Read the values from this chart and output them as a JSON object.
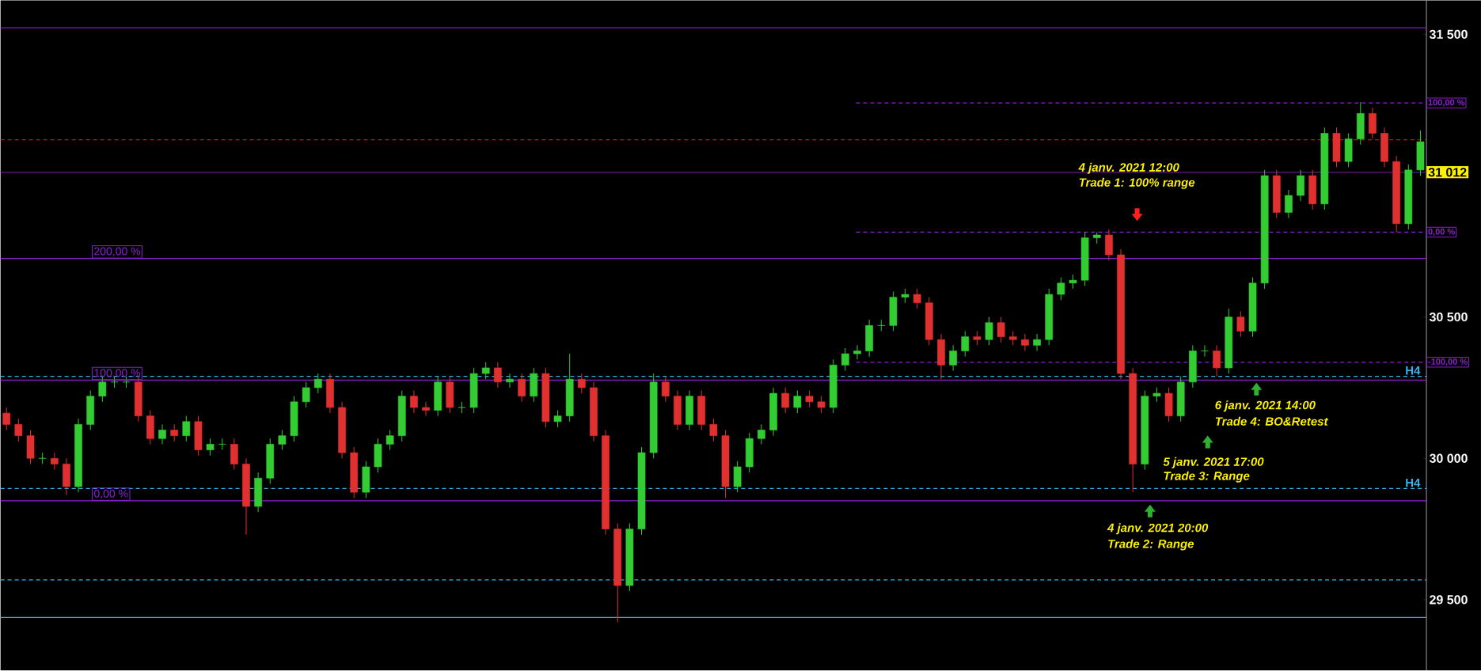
{
  "chart_data": {
    "type": "candlestick",
    "categories": [
      null,
      null,
      null,
      null,
      null,
      null,
      null,
      null,
      null,
      null,
      null,
      null,
      null,
      null,
      null,
      null,
      null,
      null,
      null,
      null,
      null,
      null,
      null,
      null,
      null,
      null,
      null,
      null,
      null,
      null,
      null,
      null,
      null,
      null,
      null,
      null,
      null,
      null,
      null,
      null,
      null,
      null,
      null,
      null,
      null,
      null,
      null,
      null,
      null,
      null,
      null,
      null,
      null,
      null,
      null,
      null,
      null,
      null,
      null,
      null,
      null,
      null,
      null,
      null,
      null,
      null,
      null,
      null,
      null,
      null,
      null,
      null,
      null,
      null,
      null,
      null,
      null,
      null,
      null,
      null,
      null,
      null,
      null,
      null,
      null,
      null,
      null,
      null,
      null,
      null,
      null,
      null,
      null,
      null,
      null,
      null,
      null,
      null,
      null,
      null,
      null,
      null,
      null,
      null,
      null,
      null,
      null,
      null,
      null,
      null,
      null,
      null,
      null,
      null,
      null,
      null,
      null,
      null,
      null
    ],
    "ohlc": [
      [
        30160,
        30180,
        30100,
        30120
      ],
      [
        30120,
        30140,
        30060,
        30080
      ],
      [
        30080,
        30100,
        29980,
        30000
      ],
      [
        30000,
        30020,
        29980,
        30000
      ],
      [
        30000,
        30020,
        29960,
        29980
      ],
      [
        29980,
        30000,
        29870,
        29900
      ],
      [
        29900,
        30140,
        29880,
        30120
      ],
      [
        30120,
        30240,
        30100,
        30220
      ],
      [
        30220,
        30290,
        30200,
        30270
      ],
      [
        30270,
        30290,
        30250,
        30270
      ],
      [
        30270,
        30290,
        30250,
        30270
      ],
      [
        30270,
        30290,
        30130,
        30150
      ],
      [
        30150,
        30170,
        30050,
        30070
      ],
      [
        30070,
        30120,
        30050,
        30100
      ],
      [
        30100,
        30120,
        30060,
        30080
      ],
      [
        30080,
        30150,
        30060,
        30130
      ],
      [
        30130,
        30150,
        30010,
        30030
      ],
      [
        30030,
        30070,
        30010,
        30050
      ],
      [
        30050,
        30070,
        30030,
        30050
      ],
      [
        30050,
        30070,
        29960,
        29980
      ],
      [
        29980,
        30000,
        29730,
        29830
      ],
      [
        29830,
        29950,
        29810,
        29930
      ],
      [
        29930,
        30070,
        29910,
        30050
      ],
      [
        30050,
        30100,
        30030,
        30080
      ],
      [
        30080,
        30220,
        30060,
        30200
      ],
      [
        30200,
        30270,
        30180,
        30250
      ],
      [
        30250,
        30300,
        30230,
        30280
      ],
      [
        30280,
        30300,
        30160,
        30180
      ],
      [
        30180,
        30200,
        30000,
        30020
      ],
      [
        30020,
        30040,
        29860,
        29880
      ],
      [
        29880,
        29990,
        29860,
        29970
      ],
      [
        29970,
        30070,
        29950,
        30050
      ],
      [
        30050,
        30100,
        30030,
        30080
      ],
      [
        30080,
        30240,
        30060,
        30220
      ],
      [
        30220,
        30240,
        30160,
        30180
      ],
      [
        30180,
        30200,
        30150,
        30170
      ],
      [
        30170,
        30290,
        30150,
        30270
      ],
      [
        30270,
        30290,
        30160,
        30180
      ],
      [
        30180,
        30200,
        30160,
        30180
      ],
      [
        30180,
        30320,
        30160,
        30300
      ],
      [
        30300,
        30340,
        30280,
        30320
      ],
      [
        30320,
        30340,
        30250,
        30270
      ],
      [
        30270,
        30300,
        30250,
        30280
      ],
      [
        30280,
        30300,
        30200,
        30220
      ],
      [
        30220,
        30320,
        30200,
        30300
      ],
      [
        30300,
        30320,
        30110,
        30130
      ],
      [
        30130,
        30170,
        30110,
        30150
      ],
      [
        30150,
        30370,
        30130,
        30280
      ],
      [
        30280,
        30300,
        30230,
        30250
      ],
      [
        30250,
        30270,
        30060,
        30080
      ],
      [
        30080,
        30100,
        29730,
        29750
      ],
      [
        29750,
        29770,
        29420,
        29550
      ],
      [
        29550,
        29770,
        29530,
        29750
      ],
      [
        29750,
        30040,
        29730,
        30020
      ],
      [
        30020,
        30300,
        30000,
        30270
      ],
      [
        30270,
        30290,
        30200,
        30220
      ],
      [
        30220,
        30240,
        30100,
        30120
      ],
      [
        30120,
        30240,
        30100,
        30220
      ],
      [
        30220,
        30240,
        30100,
        30120
      ],
      [
        30120,
        30140,
        30060,
        30080
      ],
      [
        30080,
        30100,
        29860,
        29900
      ],
      [
        29900,
        29990,
        29880,
        29970
      ],
      [
        29970,
        30090,
        29950,
        30070
      ],
      [
        30070,
        30120,
        30050,
        30100
      ],
      [
        30100,
        30250,
        30080,
        30230
      ],
      [
        30230,
        30250,
        30160,
        30180
      ],
      [
        30180,
        30240,
        30160,
        30220
      ],
      [
        30220,
        30240,
        30180,
        30200
      ],
      [
        30200,
        30220,
        30160,
        30180
      ],
      [
        30180,
        30350,
        30160,
        30330
      ],
      [
        30330,
        30390,
        30310,
        30370
      ],
      [
        30370,
        30400,
        30350,
        30380
      ],
      [
        30380,
        30490,
        30360,
        30470
      ],
      [
        30470,
        30490,
        30450,
        30470
      ],
      [
        30470,
        30590,
        30450,
        30570
      ],
      [
        30570,
        30600,
        30550,
        30580
      ],
      [
        30580,
        30600,
        30530,
        30550
      ],
      [
        30550,
        30570,
        30400,
        30420
      ],
      [
        30420,
        30440,
        30280,
        30330
      ],
      [
        30330,
        30400,
        30310,
        30380
      ],
      [
        30380,
        30450,
        30360,
        30430
      ],
      [
        30430,
        30450,
        30400,
        30420
      ],
      [
        30420,
        30500,
        30400,
        30480
      ],
      [
        30480,
        30500,
        30410,
        30430
      ],
      [
        30430,
        30450,
        30400,
        30420
      ],
      [
        30420,
        30440,
        30380,
        30400
      ],
      [
        30400,
        30440,
        30380,
        30420
      ],
      [
        30420,
        30600,
        30400,
        30580
      ],
      [
        30580,
        30640,
        30560,
        30620
      ],
      [
        30620,
        30650,
        30600,
        30630
      ],
      [
        30630,
        30800,
        30610,
        30780
      ],
      [
        30780,
        30800,
        30760,
        30790
      ],
      [
        30790,
        30810,
        30700,
        30720
      ],
      [
        30720,
        30740,
        30280,
        30300
      ],
      [
        30300,
        30320,
        29880,
        29980
      ],
      [
        29980,
        30240,
        29960,
        30220
      ],
      [
        30220,
        30250,
        30200,
        30230
      ],
      [
        30230,
        30250,
        30130,
        30150
      ],
      [
        30150,
        30290,
        30130,
        30270
      ],
      [
        30270,
        30400,
        30250,
        30380
      ],
      [
        30380,
        30400,
        30360,
        30380
      ],
      [
        30380,
        30400,
        30290,
        30320
      ],
      [
        30320,
        30530,
        30300,
        30500
      ],
      [
        30500,
        30520,
        30430,
        30450
      ],
      [
        30450,
        30640,
        30430,
        30620
      ],
      [
        30620,
        31020,
        30600,
        31000
      ],
      [
        31000,
        31020,
        30850,
        30870
      ],
      [
        30870,
        30950,
        30850,
        30930
      ],
      [
        30930,
        31020,
        30910,
        31000
      ],
      [
        31000,
        31020,
        30880,
        30900
      ],
      [
        30900,
        31170,
        30880,
        31150
      ],
      [
        31150,
        31170,
        31030,
        31050
      ],
      [
        31050,
        31150,
        31030,
        31130
      ],
      [
        31130,
        31260,
        31110,
        31220
      ],
      [
        31220,
        31240,
        31130,
        31150
      ],
      [
        31150,
        31170,
        31030,
        31050
      ],
      [
        31050,
        31070,
        30800,
        30830
      ],
      [
        30830,
        31040,
        30810,
        31020
      ],
      [
        31020,
        31160,
        31000,
        31120
      ]
    ],
    "ylim": [
      29250,
      31620
    ],
    "yticks": [
      {
        "value": 29500,
        "label": "29 500"
      },
      {
        "value": 30000,
        "label": "30 000"
      },
      {
        "value": 30500,
        "label": "30 500"
      },
      {
        "value": 31500,
        "label": "31 500"
      }
    ],
    "ref_lines": [
      {
        "axis": "y",
        "value": 31523,
        "color": "#7a1fb0",
        "line_style": "solid"
      },
      {
        "axis": "y",
        "value": 31127,
        "color": "#d01010",
        "line_style": "dashed"
      },
      {
        "axis": "y",
        "value": 31012,
        "label": "31 012",
        "color": "#5a1a80",
        "line_style": "solid"
      },
      {
        "axis": "y",
        "value": 30707,
        "color": "#8a20d0",
        "line_style": "solid"
      },
      {
        "axis": "y",
        "value": 30290,
        "label": "H4",
        "color": "#3ab0e8",
        "line_style": "dashed"
      },
      {
        "axis": "y",
        "value": 30277,
        "color": "#8a20d0",
        "line_style": "solid"
      },
      {
        "axis": "y",
        "value": 29893,
        "label": "H4",
        "color": "#3ab0e8",
        "line_style": "dashed"
      },
      {
        "axis": "y",
        "value": 29850,
        "color": "#8a20d0",
        "line_style": "solid"
      },
      {
        "axis": "y",
        "value": 29570,
        "color": "#3ab0e8",
        "line_style": "dashed"
      },
      {
        "axis": "y",
        "value": 29437,
        "color": "#3ab0e8",
        "line_style": "solid"
      },
      {
        "axis": "y",
        "value": 31257,
        "color": "#8a20d0",
        "line_style": "dashed"
      },
      {
        "axis": "y",
        "value": 30800,
        "color": "#8a20d0",
        "line_style": "dashed"
      },
      {
        "axis": "y",
        "value": 30340,
        "color": "#8a20d0",
        "line_style": "dashed"
      }
    ],
    "annotations": [
      "4 janv. 2021 12:00",
      "Trade 1: 100% range",
      "4 janv. 2021 20:00",
      "Trade 2: Range",
      "5 janv. 2021 17:00",
      "Trade 3: Range",
      "6 janv. 2021 14:00",
      "Trade 4: BO&Retest",
      "200,00 %",
      "100,00 %",
      "0,00 %",
      "100,00 %",
      "0,00 %",
      "-100,00 %"
    ]
  }
}
